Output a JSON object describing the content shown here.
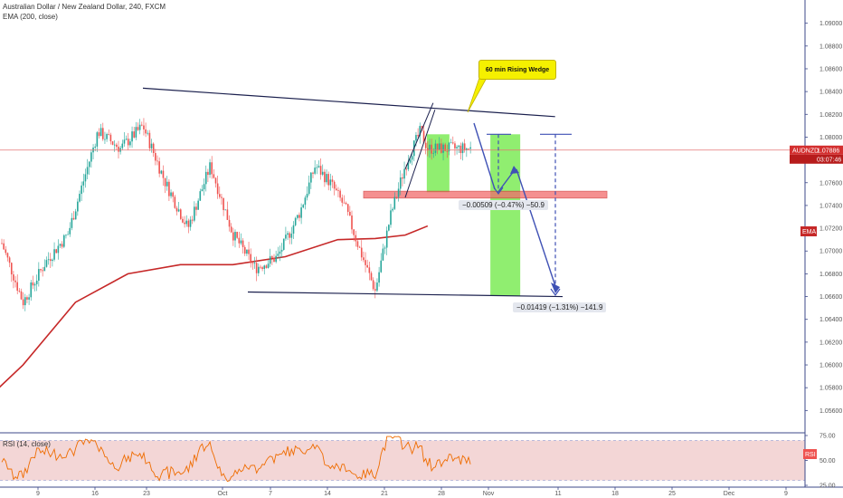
{
  "header": {
    "title": "Australian Dollar / New Zealand Dollar, 240, FXCM",
    "indicator": "EMA (200, close)",
    "rsi_label": "RSI (14, close)"
  },
  "tags": {
    "symbol": "AUDNZD",
    "price": "1.07886",
    "countdown": "03:07:46",
    "ema": "EMA",
    "rsi": "RSI"
  },
  "annotations": {
    "wedge": "60 min Rising Wedge",
    "target1": "−0.00509 (−0.47%) −50.9",
    "target2": "−0.01419 (−1.31%) −141.9"
  },
  "colors": {
    "up": "#26a69a",
    "down": "#ef5350",
    "ema": "#c62828",
    "price_line": "#e57373",
    "projection": "#3f51b5",
    "target_zone": "#90ee70",
    "rsi_line": "#ef6c00",
    "rsi_band": "#f3d6d6"
  },
  "chart_data": {
    "type": "candlestick",
    "title": "Australian Dollar / New Zealand Dollar, 240, FXCM",
    "x_tick_labels": [
      "9",
      "16",
      "23",
      "Oct",
      "7",
      "14",
      "21",
      "28",
      "Nov",
      "11",
      "18",
      "25",
      "Dec",
      "9"
    ],
    "y_tick_labels": [
      "1.09200",
      "1.09000",
      "1.08800",
      "1.08600",
      "1.08400",
      "1.08200",
      "1.08000",
      "1.07800",
      "1.07600",
      "1.07400",
      "1.07200",
      "1.07000",
      "1.06800",
      "1.06600",
      "1.06400",
      "1.06200",
      "1.06000",
      "1.05800",
      "1.05600",
      "1.05400"
    ],
    "ylim": [
      1.054,
      1.092
    ],
    "rsi_tick_labels": [
      "75.00",
      "50.00",
      "25.00"
    ],
    "rsi_ylim": [
      25,
      75
    ],
    "path_anchors": [
      [
        "Sep 01",
        1.07
      ],
      [
        "Sep 04",
        1.071
      ],
      [
        "Sep 07",
        1.0655
      ],
      [
        "Sep 10",
        1.069
      ],
      [
        "Sep 13",
        1.0715
      ],
      [
        "Sep 17",
        1.0805
      ],
      [
        "Sep 20",
        1.079
      ],
      [
        "Sep 23",
        1.081
      ],
      [
        "Sep 26",
        1.076
      ],
      [
        "Sep 29",
        1.072
      ],
      [
        "Oct 02",
        1.0775
      ],
      [
        "Oct 05",
        1.0715
      ],
      [
        "Oct 08",
        1.0685
      ],
      [
        "Oct 11",
        1.0695
      ],
      [
        "Oct 14",
        1.0735
      ],
      [
        "Oct 16",
        1.0775
      ],
      [
        "Oct 18",
        1.076
      ],
      [
        "Oct 20",
        1.0738
      ],
      [
        "Oct 22",
        1.07
      ],
      [
        "Oct 24",
        1.0665
      ],
      [
        "Oct 26",
        1.073
      ],
      [
        "Oct 28",
        1.0775
      ],
      [
        "Oct 30",
        1.0805
      ],
      [
        "Oct 31",
        1.079
      ]
    ],
    "ema_200": [
      [
        "Aug 30",
        1.055
      ],
      [
        "Sep 07",
        1.06
      ],
      [
        "Sep 14",
        1.0655
      ],
      [
        "Sep 21",
        1.068
      ],
      [
        "Sep 28",
        1.0688
      ],
      [
        "Oct 05",
        1.0688
      ],
      [
        "Oct 12",
        1.0695
      ],
      [
        "Oct 19",
        1.071
      ],
      [
        "Oct 24",
        1.0711
      ],
      [
        "Oct 28",
        1.0714
      ],
      [
        "Oct 31",
        1.0722
      ]
    ],
    "trendlines": [
      {
        "name": "upper",
        "points": [
          [
            "Sep 23",
            1.0843
          ],
          [
            "Nov 17",
            1.0818
          ]
        ]
      },
      {
        "name": "lower",
        "points": [
          [
            "Oct 07",
            1.0664
          ],
          [
            "Nov 18",
            1.066
          ]
        ]
      },
      {
        "name": "wedge",
        "points": [
          [
            "Oct 28",
            1.0772
          ],
          [
            "Oct 31",
            1.083
          ],
          [
            "Oct 28",
            1.0747
          ],
          [
            "Oct 31",
            1.0824
          ]
        ]
      }
    ],
    "resistance_zone": [
      1.07465,
      1.07525
    ],
    "targets": [
      {
        "label": "−0.00509 (−0.47%) −50.9",
        "from": 1.08025,
        "to": 1.07516,
        "x_range": [
          "Oct 31",
          "Nov 04"
        ]
      },
      {
        "label": "−0.01419 (−1.31%) −141.9",
        "from": 1.08025,
        "to": 1.06606,
        "x_range": [
          "Nov 08",
          "Nov 14"
        ]
      }
    ],
    "last_price": 1.07886,
    "grid": false
  }
}
